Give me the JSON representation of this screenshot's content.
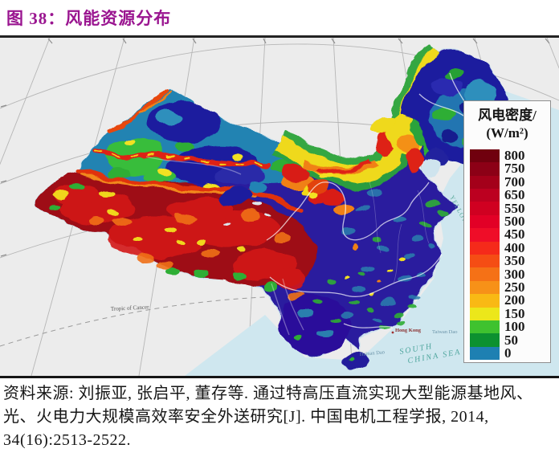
{
  "figure": {
    "caption": "图 38：风能资源分布",
    "accent_color": "#9a1590"
  },
  "map": {
    "description": "wind-power-density heatmap of China",
    "background_color": "#ececec",
    "sea_color": "#cfe7ef",
    "labels": {
      "tropic": "Tropic of Cancer",
      "yellow_sea": "YELLOW SEA",
      "south_china_sea_1": "SOUTH",
      "south_china_sea_2": "CHINA SEA",
      "hainan": "Hainan Dao",
      "taiwan": "Taiwan Dao",
      "hong_kong": "Hong Kong"
    }
  },
  "legend": {
    "title_line1": "风电密度/",
    "title_line2": "(W/m²)",
    "entries": [
      {
        "value": "800",
        "color": "#70000e"
      },
      {
        "value": "750",
        "color": "#8c0016"
      },
      {
        "value": "700",
        "color": "#a4001a"
      },
      {
        "value": "650",
        "color": "#bc0020"
      },
      {
        "value": "550",
        "color": "#d00021"
      },
      {
        "value": "500",
        "color": "#e20026"
      },
      {
        "value": "450",
        "color": "#ef0d28"
      },
      {
        "value": "400",
        "color": "#f52a1a"
      },
      {
        "value": "350",
        "color": "#f54d14"
      },
      {
        "value": "300",
        "color": "#f57116"
      },
      {
        "value": "250",
        "color": "#f79118"
      },
      {
        "value": "200",
        "color": "#f9b914"
      },
      {
        "value": "150",
        "color": "#ece71a"
      },
      {
        "value": "100",
        "color": "#3fc22f"
      },
      {
        "value": "50",
        "color": "#0c9130"
      },
      {
        "value": "0",
        "color": "#1e80b2"
      }
    ]
  },
  "source": {
    "text": "资料来源: 刘振亚, 张启平, 董存等. 通过特高压直流实现大型能源基地风、光、火电力大规模高效率安全外送研究[J]. 中国电机工程学报, 2014, 34(16):2513-2522."
  }
}
